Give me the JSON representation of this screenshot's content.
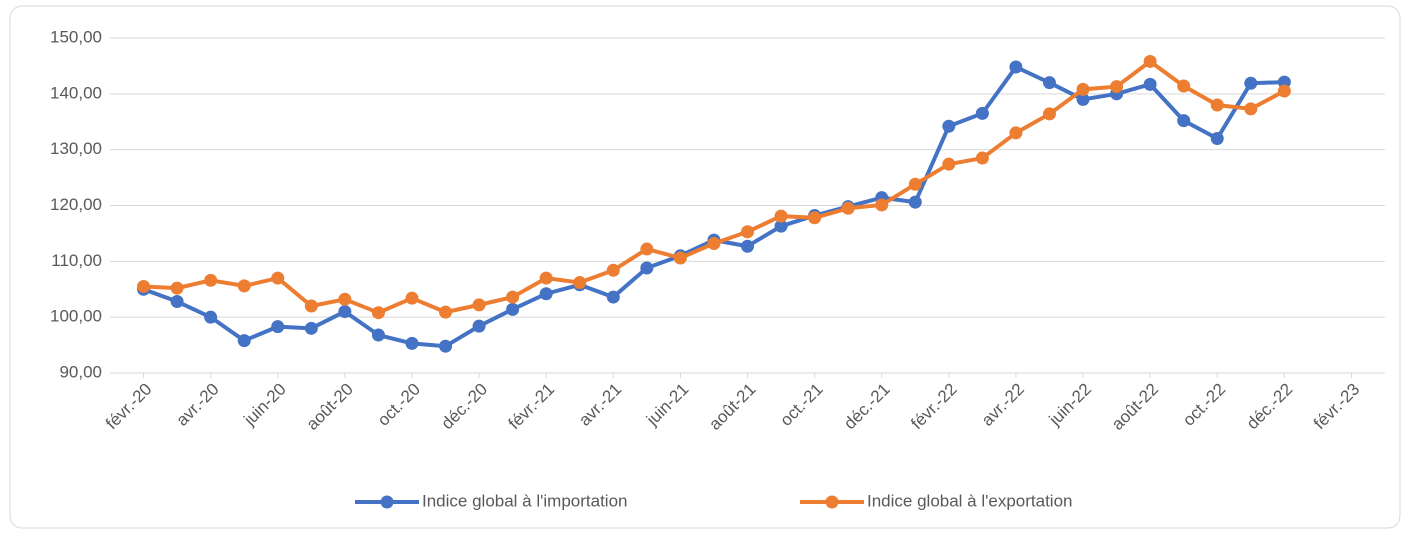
{
  "chart_data": {
    "type": "line",
    "x": [
      "2020-02",
      "2020-03",
      "2020-04",
      "2020-05",
      "2020-06",
      "2020-07",
      "2020-08",
      "2020-09",
      "2020-10",
      "2020-11",
      "2020-12",
      "2021-01",
      "2021-02",
      "2021-03",
      "2021-04",
      "2021-05",
      "2021-06",
      "2021-07",
      "2021-08",
      "2021-09",
      "2021-10",
      "2021-11",
      "2021-12",
      "2022-01",
      "2022-02",
      "2022-03",
      "2022-04",
      "2022-05",
      "2022-06",
      "2022-07",
      "2022-08",
      "2022-09",
      "2022-10",
      "2022-11",
      "2022-12"
    ],
    "series": [
      {
        "name": "Indice global à l'importation",
        "color": "#4472c4",
        "values": [
          105,
          102.8,
          100,
          95.8,
          98.3,
          98,
          101,
          96.8,
          95.3,
          94.8,
          98.4,
          101.4,
          104.2,
          105.8,
          103.6,
          108.8,
          111,
          113.8,
          112.7,
          116.3,
          118.2,
          119.8,
          121.4,
          120.6,
          134.2,
          136.5,
          144.8,
          142,
          139,
          140,
          141.7,
          135.2,
          132,
          141.9,
          142.1
        ]
      },
      {
        "name": "Indice global à l'exportation",
        "color": "#ed7d31",
        "values": [
          105.5,
          105.2,
          106.6,
          105.6,
          107,
          102,
          103.2,
          100.8,
          103.4,
          100.9,
          102.2,
          103.6,
          107,
          106.2,
          108.4,
          112.2,
          110.6,
          113.2,
          115.3,
          118.1,
          117.8,
          119.5,
          120.1,
          123.8,
          127.4,
          128.5,
          133,
          136.4,
          140.8,
          141.3,
          145.8,
          141.4,
          138,
          137.3,
          140.5
        ]
      }
    ],
    "xlim": [
      "2020-01",
      "2023-03"
    ],
    "xticks": [
      {
        "value": "2020-02",
        "label": "févr.-20"
      },
      {
        "value": "2020-04",
        "label": "avr.-20"
      },
      {
        "value": "2020-06",
        "label": "juin-20"
      },
      {
        "value": "2020-08",
        "label": "août-20"
      },
      {
        "value": "2020-10",
        "label": "oct.-20"
      },
      {
        "value": "2020-12",
        "label": "déc.-20"
      },
      {
        "value": "2021-02",
        "label": "févr.-21"
      },
      {
        "value": "2021-04",
        "label": "avr.-21"
      },
      {
        "value": "2021-06",
        "label": "juin-21"
      },
      {
        "value": "2021-08",
        "label": "août-21"
      },
      {
        "value": "2021-10",
        "label": "oct.-21"
      },
      {
        "value": "2021-12",
        "label": "déc.-21"
      },
      {
        "value": "2022-02",
        "label": "févr.-22"
      },
      {
        "value": "2022-04",
        "label": "avr.-22"
      },
      {
        "value": "2022-06",
        "label": "juin-22"
      },
      {
        "value": "2022-08",
        "label": "août-22"
      },
      {
        "value": "2022-10",
        "label": "oct.-22"
      },
      {
        "value": "2022-12",
        "label": "déc.-22"
      },
      {
        "value": "2023-02",
        "label": "févr.-23"
      }
    ],
    "ylim": [
      90,
      150
    ],
    "yticks": [
      {
        "value": 90,
        "label": "90,00"
      },
      {
        "value": 100,
        "label": "100,00"
      },
      {
        "value": 110,
        "label": "110,00"
      },
      {
        "value": 120,
        "label": "120,00"
      },
      {
        "value": 130,
        "label": "130,00"
      },
      {
        "value": 140,
        "label": "140,00"
      },
      {
        "value": 150,
        "label": "150,00"
      }
    ],
    "grid": true,
    "legend": "bottom"
  }
}
